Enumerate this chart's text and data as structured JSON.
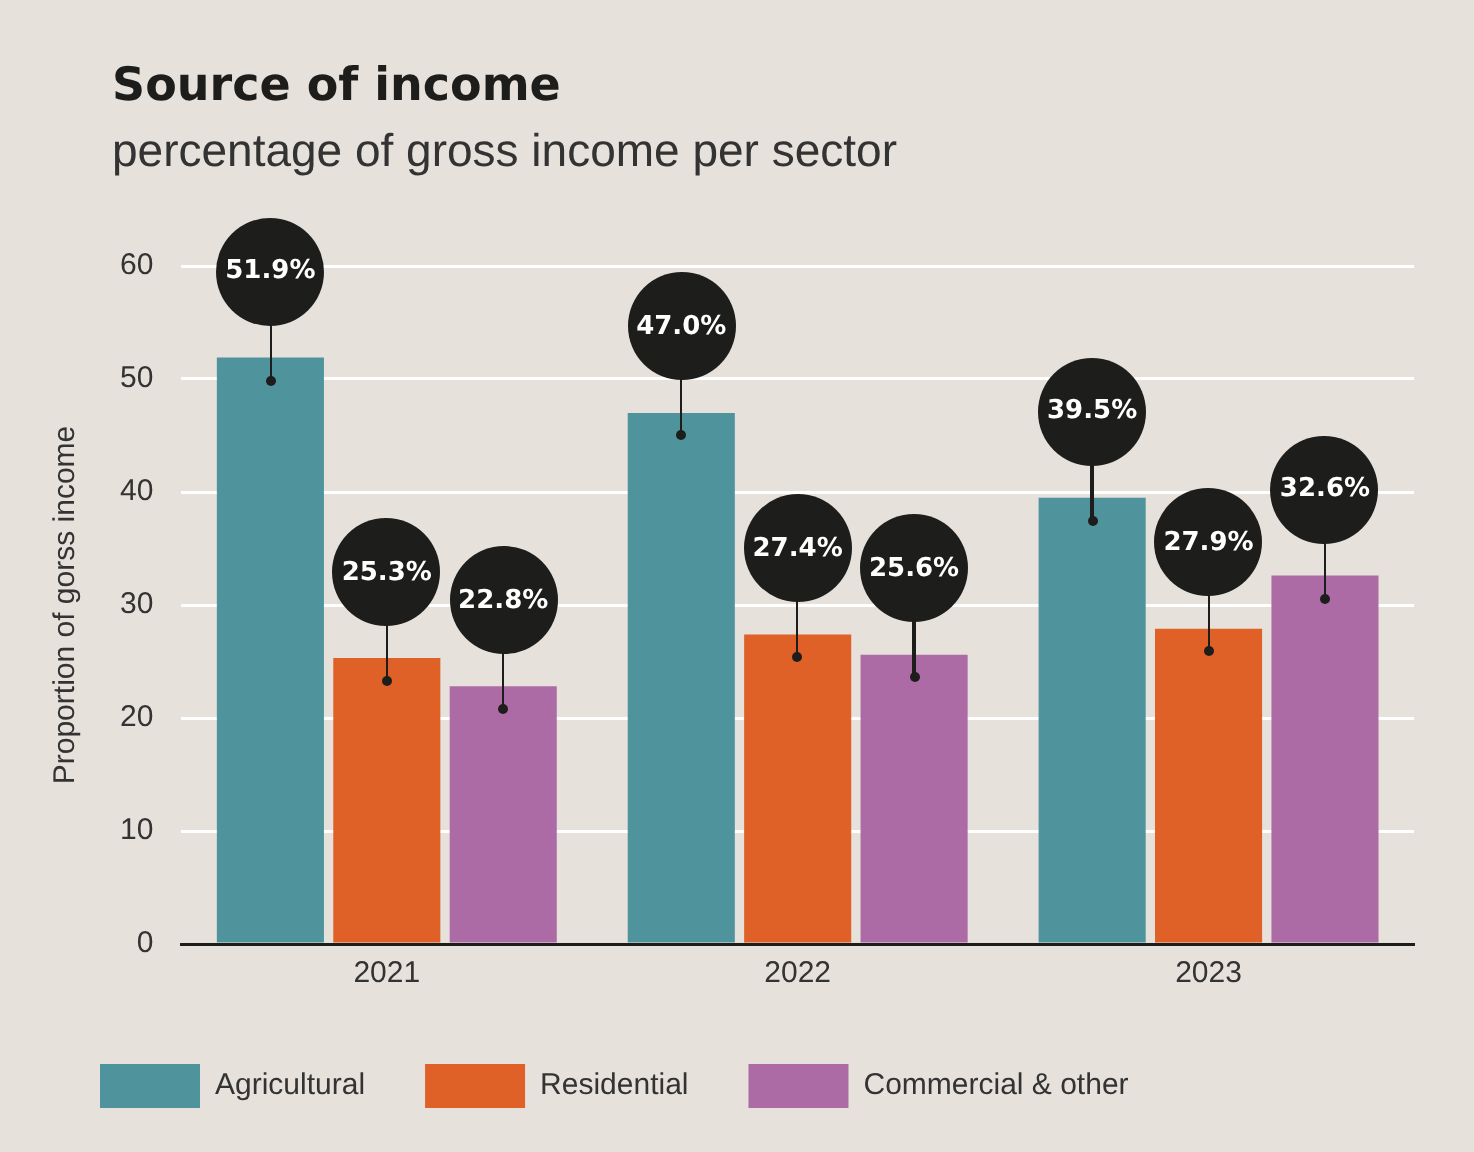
{
  "chart_data": {
    "type": "bar",
    "title": "Source of income",
    "subtitle": "percentage of gross income per sector",
    "ylabel": "Proportion of gorss income",
    "categories": [
      "2021",
      "2022",
      "2023"
    ],
    "series": [
      {
        "name": "Agricultural",
        "color": "#4f949d",
        "values": [
          51.9,
          47.0,
          39.5
        ],
        "value_labels": [
          "51.9%",
          "47.0%",
          "39.5%"
        ]
      },
      {
        "name": "Residential",
        "color": "#e06127",
        "values": [
          25.3,
          27.4,
          27.9
        ],
        "value_labels": [
          "25.3%",
          "27.4%",
          "27.9%"
        ]
      },
      {
        "name": "Commercial & other",
        "color": "#ad6ba6",
        "values": [
          22.8,
          25.6,
          32.6
        ],
        "value_labels": [
          "22.8%",
          "25.6%",
          "32.6%"
        ]
      }
    ],
    "ylim": [
      0,
      60
    ],
    "yticks": [
      0,
      10,
      20,
      30,
      40,
      50,
      60
    ],
    "grid": "y",
    "legend": "bottom left"
  }
}
